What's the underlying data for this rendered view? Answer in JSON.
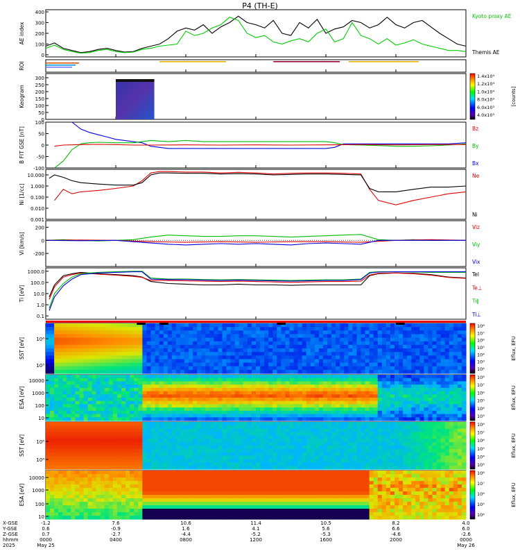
{
  "chart_data": {
    "type": "line",
    "title": "P4 (TH-E)",
    "x_units": "hhmm",
    "x_tick_labels": [
      "0000",
      "0400",
      "0800",
      "1200",
      "1600",
      "2000",
      "0000"
    ],
    "x_date_labels": [
      "May 25",
      "",
      "",
      "",
      "",
      "",
      "May 26"
    ],
    "x_year_label": "2025",
    "orbit_row_labels": [
      "X-GSE",
      "Y-GSE",
      "Z-GSE",
      "hhmm",
      "2025"
    ],
    "orbit_values": [
      [
        "-1.2",
        "7.6",
        "10.6",
        "11.4",
        "10.5",
        "8.2",
        "4.0"
      ],
      [
        "0.6",
        "-0.9",
        "1.6",
        "4.1",
        "5.6",
        "6.6",
        "6.0"
      ],
      [
        "0.7",
        "-2.7",
        "-4.4",
        "-5.2",
        "-5.3",
        "-4.6",
        "-2.6"
      ]
    ],
    "panels": [
      {
        "id": "ae",
        "ylabel": "AE index",
        "ylim": [
          -20,
          420
        ],
        "y_ticks": [
          "0",
          "100",
          "200",
          "300",
          "400"
        ],
        "legend": [
          {
            "name": "Kyoto proxy AE",
            "color": "#00cc00"
          },
          {
            "name": "Themis AE",
            "color": "#000000"
          }
        ]
      },
      {
        "id": "roi",
        "ylabel": "ROI"
      },
      {
        "id": "keogram",
        "ylabel": "Keogram",
        "ylim": [
          0,
          330
        ],
        "y_ticks": [
          "0",
          "50",
          "100",
          "150",
          "200",
          "250",
          "300"
        ],
        "colorbar_label": "[counts]",
        "colorbar_ticks": [
          "1.4x10⁴",
          "1.2x10⁴",
          "1.0x10⁴",
          "8.0x10³",
          "6.0x10³",
          "4.0x10³"
        ]
      },
      {
        "id": "bfgm",
        "ylabel": "B FIT GSE [nT]",
        "ylim": [
          -100,
          100
        ],
        "y_ticks": [
          "-100",
          "-50",
          "0",
          "50",
          "100"
        ],
        "legend": [
          {
            "name": "Bz",
            "color": "#dd0000"
          },
          {
            "name": "By",
            "color": "#00bb00"
          },
          {
            "name": "Bx",
            "color": "#0000dd"
          }
        ]
      },
      {
        "id": "density",
        "ylabel": "Ni [1/cc]",
        "y_scale": "log",
        "y_ticks": [
          "0.001",
          "0.010",
          "0.100",
          "1.000",
          "10.000"
        ],
        "legend": [
          {
            "name": "Ne",
            "color": "#dd0000"
          },
          {
            "name": "Ni",
            "color": "#000000"
          }
        ]
      },
      {
        "id": "velocity",
        "ylabel": "Vi [km/s]",
        "ylim": [
          -400,
          300
        ],
        "y_ticks": [
          "-200",
          "0",
          "200"
        ],
        "legend": [
          {
            "name": "Viz",
            "color": "#dd0000"
          },
          {
            "name": "Viy",
            "color": "#00bb00"
          },
          {
            "name": "Vix",
            "color": "#0000dd"
          }
        ]
      },
      {
        "id": "temperature",
        "ylabel": "Ti [eV]",
        "y_scale": "log",
        "y_ticks": [
          "0.1",
          "1.0",
          "10.0",
          "100.0",
          "1000.0"
        ],
        "legend": [
          {
            "name": "Tel",
            "color": "#000000"
          },
          {
            "name": "Te⊥",
            "color": "#dd0000"
          },
          {
            "name": "Ti∥",
            "color": "#00bb00"
          },
          {
            "name": "Ti⊥",
            "color": "#0000dd"
          }
        ]
      },
      {
        "id": "sst_e",
        "ylabel": "SST [eV]",
        "y_ticks": [
          "10⁶",
          "10⁵"
        ],
        "colorbar_label": "Eflux, EFU",
        "colorbar_ticks": [
          "10⁸",
          "10⁷",
          "10⁶",
          "10⁵",
          "10⁴",
          "10³",
          "10²"
        ]
      },
      {
        "id": "esa_e",
        "ylabel": "ESA [eV]",
        "y_ticks": [
          "10000",
          "1000",
          "100",
          "10"
        ],
        "colorbar_label": "Eflux, EFU",
        "colorbar_ticks": [
          "10⁸",
          "10⁷",
          "10⁶",
          "10⁵",
          "10⁴",
          "10³"
        ]
      },
      {
        "id": "sst_i",
        "ylabel": "SST [eV]",
        "y_ticks": [
          "10⁶",
          "10⁵"
        ],
        "colorbar_label": "Eflux, EFU",
        "colorbar_ticks": [
          "10⁸",
          "10⁷",
          "10⁶",
          "10⁵",
          "10⁴",
          "10³"
        ]
      },
      {
        "id": "esa_i",
        "ylabel": "ESA [eV]",
        "y_ticks": [
          "10000",
          "1000",
          "100",
          "10"
        ],
        "colorbar_label": "Eflux, EFU",
        "colorbar_ticks": [
          "10⁸",
          "10⁷",
          "10⁶",
          "10⁵",
          "10⁴"
        ]
      }
    ],
    "ae_series": [
      {
        "name": "Themis AE",
        "color": "#000000",
        "t": [
          0,
          0.5,
          1,
          1.5,
          2,
          2.5,
          3,
          3.5,
          4,
          4.5,
          5,
          5.5,
          6,
          6.5,
          7,
          7.5,
          8,
          8.5,
          9,
          9.5,
          10,
          10.5,
          11,
          11.5,
          12,
          12.5,
          13,
          13.5,
          14,
          14.5,
          15,
          15.5,
          16,
          16.5,
          17,
          17.5,
          18,
          18.5,
          19,
          19.5,
          20,
          20.5,
          21,
          21.5,
          22,
          22.5,
          23,
          23.5,
          24
        ],
        "values": [
          80,
          110,
          60,
          40,
          20,
          30,
          50,
          60,
          40,
          25,
          30,
          60,
          80,
          100,
          150,
          220,
          250,
          230,
          280,
          200,
          260,
          300,
          360,
          300,
          280,
          250,
          320,
          200,
          180,
          300,
          250,
          330,
          200,
          240,
          260,
          320,
          300,
          250,
          280,
          350,
          280,
          250,
          300,
          320,
          260,
          200,
          150,
          100,
          80
        ]
      },
      {
        "name": "Kyoto proxy AE",
        "color": "#00cc00",
        "t": [
          0,
          0.5,
          1,
          1.5,
          2,
          2.5,
          3,
          3.5,
          4,
          4.5,
          5,
          5.5,
          6,
          6.5,
          7,
          7.5,
          8,
          8.5,
          9,
          9.5,
          10,
          10.5,
          11,
          11.5,
          12,
          12.5,
          13,
          13.5,
          14,
          14.5,
          15,
          15.5,
          16,
          16.5,
          17,
          17.5,
          18,
          18.5,
          19,
          19.5,
          20,
          20.5,
          21,
          21.5,
          22,
          22.5,
          23,
          23.5,
          24
        ],
        "values": [
          60,
          90,
          50,
          30,
          15,
          20,
          40,
          50,
          30,
          20,
          25,
          50,
          60,
          80,
          90,
          100,
          220,
          180,
          200,
          250,
          280,
          350,
          320,
          200,
          160,
          180,
          120,
          100,
          130,
          150,
          120,
          200,
          240,
          120,
          150,
          300,
          180,
          150,
          100,
          150,
          90,
          110,
          140,
          100,
          80,
          60,
          40,
          40,
          30
        ]
      }
    ],
    "roi_bars": [
      {
        "t0": 0.0,
        "t1": 1.9,
        "color": "#dd5500"
      },
      {
        "t0": 0.0,
        "t1": 1.7,
        "color": "#0099dd"
      },
      {
        "t0": 0.0,
        "t1": 1.5,
        "color": "#7777ff"
      },
      {
        "t0": 6.5,
        "t1": 10.3,
        "color": "#e0b000"
      },
      {
        "t0": 13.0,
        "t1": 16.8,
        "color": "#990033"
      },
      {
        "t0": 17.3,
        "t1": 21.3,
        "color": "#e0b000"
      }
    ],
    "keogram_block": {
      "t0": 4.0,
      "t1": 6.2
    },
    "b_series": [
      {
        "name": "Bx",
        "color": "#0000dd",
        "t": [
          1.5,
          2,
          2.5,
          3,
          3.5,
          4,
          4.5,
          5,
          5.5,
          6,
          7,
          8,
          9,
          10,
          11,
          12,
          13,
          14,
          15,
          16,
          16.5,
          17,
          18,
          19,
          20,
          21,
          22,
          23,
          24
        ],
        "values": [
          100,
          70,
          55,
          45,
          35,
          25,
          20,
          15,
          10,
          -5,
          -15,
          -15,
          -15,
          -15,
          -15,
          -15,
          -15,
          -15,
          -15,
          -15,
          -10,
          5,
          5,
          5,
          5,
          5,
          5,
          5,
          10
        ]
      },
      {
        "name": "By",
        "color": "#00bb00",
        "t": [
          0.5,
          1,
          1.5,
          2,
          2.5,
          3,
          4,
          5,
          6,
          7,
          8,
          9,
          10,
          11,
          12,
          13,
          14,
          15,
          16,
          16.5,
          17,
          18,
          19,
          20,
          21,
          22,
          23,
          24
        ],
        "values": [
          -100,
          -70,
          -20,
          5,
          10,
          12,
          10,
          10,
          20,
          15,
          20,
          15,
          15,
          15,
          15,
          15,
          15,
          15,
          15,
          10,
          2,
          0,
          -2,
          -5,
          -5,
          -3,
          0,
          5
        ]
      },
      {
        "name": "Bz",
        "color": "#dd0000",
        "t": [
          0.5,
          1,
          2,
          3,
          4,
          5,
          6,
          8,
          10,
          12,
          14,
          16,
          18,
          20,
          22,
          24
        ],
        "values": [
          -5,
          0,
          2,
          3,
          2,
          0,
          0,
          1,
          0,
          1,
          0,
          1,
          2,
          1,
          2,
          2
        ]
      }
    ],
    "n_series": [
      {
        "name": "Ne",
        "color": "#dd0000",
        "t": [
          0.5,
          1,
          1.5,
          2,
          3,
          4,
          5,
          5.5,
          6,
          6.5,
          7,
          8,
          9,
          10,
          11,
          12,
          13,
          14,
          15,
          16,
          17,
          18,
          18.5,
          19,
          20,
          21,
          22,
          23,
          24
        ],
        "values": [
          0.05,
          0.5,
          0.2,
          0.3,
          0.4,
          0.6,
          1.0,
          3.0,
          15,
          20,
          20,
          18,
          18,
          15,
          17,
          15,
          12,
          14,
          15,
          15,
          14,
          12,
          0.5,
          0.05,
          0.02,
          0.05,
          0.1,
          0.2,
          0.3
        ]
      },
      {
        "name": "Ni",
        "color": "#000000",
        "t": [
          0.2,
          0.5,
          1,
          1.5,
          2,
          3,
          4,
          5,
          5.5,
          6,
          6.5,
          7,
          8,
          9,
          10,
          11,
          12,
          13,
          14,
          15,
          16,
          17,
          18,
          18.5,
          19,
          20,
          21,
          22,
          23,
          24
        ],
        "values": [
          5,
          10,
          6,
          3,
          2,
          1.5,
          1.2,
          1.2,
          2,
          10,
          15,
          15,
          14,
          14,
          12,
          13,
          12,
          10,
          11,
          12,
          12,
          11,
          10,
          0.6,
          0.3,
          0.3,
          0.5,
          0.8,
          0.8,
          1.0
        ]
      }
    ],
    "v_series": [
      {
        "name": "Viy",
        "color": "#00bb00",
        "t": [
          0,
          1,
          2,
          3,
          4,
          5,
          6,
          7,
          8,
          9,
          10,
          11,
          12,
          13,
          14,
          15,
          16,
          17,
          18,
          19,
          20,
          21,
          22,
          23,
          24
        ],
        "values": [
          0,
          10,
          0,
          -10,
          0,
          10,
          50,
          80,
          70,
          60,
          60,
          70,
          70,
          60,
          50,
          60,
          70,
          80,
          90,
          10,
          0,
          10,
          0,
          0,
          0
        ]
      },
      {
        "name": "Viz",
        "color": "#dd0000",
        "t": [
          0,
          2,
          4,
          6,
          8,
          10,
          12,
          14,
          16,
          18,
          20,
          22,
          24
        ],
        "values": [
          0,
          5,
          0,
          -20,
          -30,
          -20,
          -30,
          -20,
          -20,
          -30,
          0,
          10,
          0
        ]
      },
      {
        "name": "Vix",
        "color": "#0000dd",
        "t": [
          0,
          2,
          4,
          6,
          7,
          8,
          9,
          10,
          11,
          12,
          13,
          14,
          15,
          16,
          17,
          18,
          19,
          20,
          22,
          24
        ],
        "values": [
          0,
          -5,
          0,
          -40,
          -60,
          -70,
          -60,
          -50,
          -60,
          -50,
          -60,
          -70,
          -50,
          -40,
          -50,
          -60,
          0,
          0,
          0,
          0
        ]
      }
    ],
    "t_series": [
      {
        "name": "Tel",
        "color": "#000000",
        "t": [
          0.2,
          0.5,
          1,
          1.5,
          2,
          3,
          4,
          5,
          5.5,
          6,
          7,
          8,
          9,
          10,
          11,
          12,
          13,
          14,
          15,
          16,
          17,
          18,
          18.5,
          19,
          20,
          21,
          22,
          23,
          24
        ],
        "values": [
          5,
          60,
          400,
          600,
          800,
          600,
          500,
          400,
          300,
          120,
          80,
          70,
          60,
          60,
          70,
          60,
          60,
          55,
          60,
          60,
          60,
          60,
          400,
          600,
          700,
          650,
          500,
          300,
          250
        ]
      },
      {
        "name": "Te⊥",
        "color": "#dd0000",
        "t": [
          0.2,
          0.5,
          1,
          1.5,
          2,
          3,
          4,
          5,
          5.5,
          6,
          7,
          8,
          9,
          10,
          11,
          12,
          13,
          14,
          15,
          16,
          17,
          18,
          18.5,
          19,
          20,
          21,
          22,
          23,
          24
        ],
        "values": [
          3,
          40,
          300,
          500,
          700,
          550,
          450,
          350,
          280,
          150,
          150,
          140,
          130,
          120,
          130,
          120,
          110,
          100,
          110,
          120,
          120,
          130,
          450,
          650,
          700,
          600,
          450,
          280,
          230
        ]
      },
      {
        "name": "Ti∥",
        "color": "#00bb00",
        "t": [
          0.2,
          0.5,
          1,
          1.5,
          2,
          3,
          4,
          5,
          5.5,
          6,
          7,
          8,
          9,
          10,
          11,
          12,
          13,
          14,
          15,
          16,
          17,
          18,
          18.5,
          19,
          20,
          21,
          22,
          23,
          24
        ],
        "values": [
          0.5,
          10,
          80,
          300,
          600,
          800,
          900,
          1000,
          1000,
          250,
          200,
          200,
          180,
          170,
          180,
          170,
          160,
          150,
          160,
          170,
          170,
          200,
          800,
          900,
          900,
          850,
          800,
          800,
          800
        ]
      },
      {
        "name": "Ti⊥",
        "color": "#0000dd",
        "t": [
          0.2,
          0.5,
          1,
          1.5,
          2,
          3,
          4,
          5,
          5.5,
          6,
          7,
          8,
          9,
          10,
          11,
          12,
          13,
          14,
          15,
          16,
          17,
          18,
          18.5,
          19,
          20,
          21,
          22,
          23,
          24
        ],
        "values": [
          0.3,
          5,
          50,
          200,
          500,
          700,
          800,
          900,
          900,
          200,
          180,
          180,
          160,
          150,
          160,
          150,
          140,
          130,
          140,
          150,
          150,
          180,
          700,
          850,
          900,
          900,
          900,
          900,
          900
        ]
      }
    ],
    "sst_flag_bars": [
      {
        "t0": 5.2,
        "t1": 5.7
      },
      {
        "t0": 6.5,
        "t1": 7.0
      },
      {
        "t0": 13.2,
        "t1": 13.7
      },
      {
        "t0": 20.0,
        "t1": 20.5
      }
    ]
  }
}
